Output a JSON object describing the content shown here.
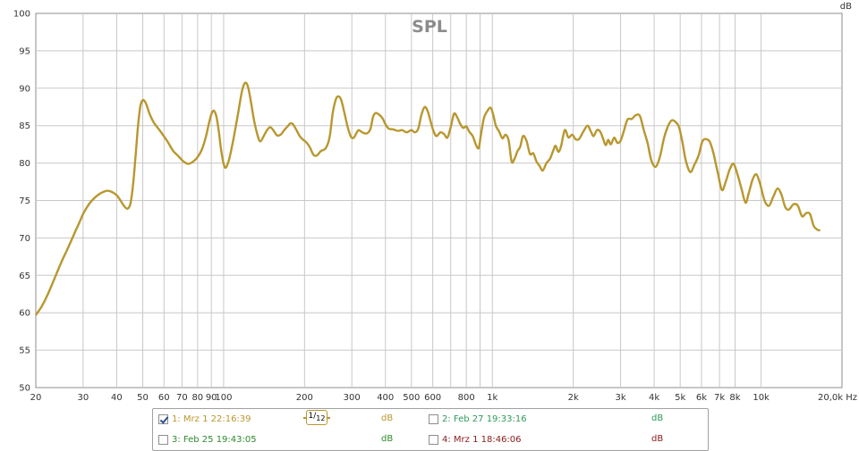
{
  "chart_data": {
    "type": "line",
    "title": "SPL",
    "ylabel": "dB",
    "xlabel": "",
    "x_scale": "log",
    "xlim": [
      20,
      20000
    ],
    "ylim": [
      50,
      100
    ],
    "grid": true,
    "y_ticks": [
      50,
      55,
      60,
      65,
      70,
      75,
      80,
      85,
      90,
      95,
      100
    ],
    "x_ticks": [
      {
        "v": 20,
        "label": "20"
      },
      {
        "v": 30,
        "label": "30"
      },
      {
        "v": 40,
        "label": "40"
      },
      {
        "v": 50,
        "label": "50"
      },
      {
        "v": 60,
        "label": "60"
      },
      {
        "v": 70,
        "label": "70"
      },
      {
        "v": 80,
        "label": "80"
      },
      {
        "v": 90,
        "label": "90"
      },
      {
        "v": 100,
        "label": "100"
      },
      {
        "v": 200,
        "label": "200"
      },
      {
        "v": 300,
        "label": "300"
      },
      {
        "v": 400,
        "label": "400"
      },
      {
        "v": 500,
        "label": "500"
      },
      {
        "v": 600,
        "label": "600"
      },
      {
        "v": 800,
        "label": "800"
      },
      {
        "v": 1000,
        "label": "1k"
      },
      {
        "v": 2000,
        "label": "2k"
      },
      {
        "v": 3000,
        "label": "3k"
      },
      {
        "v": 4000,
        "label": "4k"
      },
      {
        "v": 5000,
        "label": "5k"
      },
      {
        "v": 6000,
        "label": "6k"
      },
      {
        "v": 7000,
        "label": "7k"
      },
      {
        "v": 8000,
        "label": "8k"
      },
      {
        "v": 10000,
        "label": "10k"
      },
      {
        "v": 20000,
        "label": "20,0k Hz"
      }
    ],
    "minor_x_gridlines": [
      700,
      900
    ],
    "series": [
      {
        "color": "#b8972e",
        "points": [
          [
            20,
            59.7
          ],
          [
            21,
            60.8
          ],
          [
            22,
            62.2
          ],
          [
            23,
            63.8
          ],
          [
            24,
            65.4
          ],
          [
            25,
            66.9
          ],
          [
            26,
            68.2
          ],
          [
            27,
            69.5
          ],
          [
            28,
            70.8
          ],
          [
            29,
            72.0
          ],
          [
            30,
            73.2
          ],
          [
            31,
            74.1
          ],
          [
            32,
            74.8
          ],
          [
            33,
            75.3
          ],
          [
            34,
            75.7
          ],
          [
            35,
            76.0
          ],
          [
            36,
            76.2
          ],
          [
            37,
            76.3
          ],
          [
            38,
            76.2
          ],
          [
            39,
            76.0
          ],
          [
            40,
            75.7
          ],
          [
            41,
            75.2
          ],
          [
            42,
            74.6
          ],
          [
            43,
            74.1
          ],
          [
            44,
            73.9
          ],
          [
            45,
            74.6
          ],
          [
            46,
            77.0
          ],
          [
            47,
            80.8
          ],
          [
            48,
            84.9
          ],
          [
            49,
            87.6
          ],
          [
            50,
            88.4
          ],
          [
            51,
            88.2
          ],
          [
            52,
            87.5
          ],
          [
            53,
            86.6
          ],
          [
            55,
            85.4
          ],
          [
            58,
            84.3
          ],
          [
            62,
            82.8
          ],
          [
            65,
            81.6
          ],
          [
            68,
            80.9
          ],
          [
            71,
            80.2
          ],
          [
            74,
            79.9
          ],
          [
            77,
            80.2
          ],
          [
            80,
            80.8
          ],
          [
            83,
            81.8
          ],
          [
            86,
            83.6
          ],
          [
            88,
            85.2
          ],
          [
            90,
            86.5
          ],
          [
            92,
            87.0
          ],
          [
            94,
            86.2
          ],
          [
            96,
            84.2
          ],
          [
            98,
            81.6
          ],
          [
            100,
            79.9
          ],
          [
            102,
            79.4
          ],
          [
            105,
            80.6
          ],
          [
            109,
            83.4
          ],
          [
            113,
            86.5
          ],
          [
            117,
            89.6
          ],
          [
            120,
            90.7
          ],
          [
            123,
            90.3
          ],
          [
            126,
            88.4
          ],
          [
            130,
            85.6
          ],
          [
            134,
            83.6
          ],
          [
            137,
            82.9
          ],
          [
            141,
            83.6
          ],
          [
            145,
            84.4
          ],
          [
            149,
            84.8
          ],
          [
            153,
            84.4
          ],
          [
            158,
            83.7
          ],
          [
            163,
            83.8
          ],
          [
            168,
            84.4
          ],
          [
            173,
            84.9
          ],
          [
            177,
            85.3
          ],
          [
            181,
            85.2
          ],
          [
            186,
            84.5
          ],
          [
            192,
            83.6
          ],
          [
            198,
            83.1
          ],
          [
            204,
            82.7
          ],
          [
            210,
            82.0
          ],
          [
            216,
            81.1
          ],
          [
            222,
            81.0
          ],
          [
            230,
            81.6
          ],
          [
            240,
            82.0
          ],
          [
            248,
            83.5
          ],
          [
            255,
            86.8
          ],
          [
            262,
            88.6
          ],
          [
            268,
            88.9
          ],
          [
            274,
            88.4
          ],
          [
            282,
            86.6
          ],
          [
            290,
            84.7
          ],
          [
            298,
            83.5
          ],
          [
            305,
            83.4
          ],
          [
            312,
            84.0
          ],
          [
            318,
            84.4
          ],
          [
            325,
            84.2
          ],
          [
            333,
            84.0
          ],
          [
            343,
            84.0
          ],
          [
            352,
            84.6
          ],
          [
            360,
            86.2
          ],
          [
            368,
            86.7
          ],
          [
            378,
            86.5
          ],
          [
            390,
            86.0
          ],
          [
            400,
            85.2
          ],
          [
            412,
            84.6
          ],
          [
            428,
            84.5
          ],
          [
            445,
            84.3
          ],
          [
            462,
            84.4
          ],
          [
            480,
            84.1
          ],
          [
            500,
            84.4
          ],
          [
            515,
            84.1
          ],
          [
            530,
            84.6
          ],
          [
            545,
            86.5
          ],
          [
            560,
            87.5
          ],
          [
            575,
            86.9
          ],
          [
            590,
            85.5
          ],
          [
            605,
            84.2
          ],
          [
            620,
            83.6
          ],
          [
            640,
            84.1
          ],
          [
            660,
            83.9
          ],
          [
            680,
            83.4
          ],
          [
            700,
            84.8
          ],
          [
            720,
            86.6
          ],
          [
            740,
            86.1
          ],
          [
            760,
            85.2
          ],
          [
            780,
            84.7
          ],
          [
            800,
            84.9
          ],
          [
            820,
            84.2
          ],
          [
            845,
            83.6
          ],
          [
            870,
            82.4
          ],
          [
            890,
            82.0
          ],
          [
            905,
            83.6
          ],
          [
            930,
            86.0
          ],
          [
            960,
            87.0
          ],
          [
            985,
            87.4
          ],
          [
            1005,
            86.6
          ],
          [
            1030,
            85.0
          ],
          [
            1060,
            84.2
          ],
          [
            1090,
            83.3
          ],
          [
            1120,
            83.8
          ],
          [
            1150,
            83.0
          ],
          [
            1180,
            80.2
          ],
          [
            1210,
            80.6
          ],
          [
            1240,
            81.6
          ],
          [
            1270,
            82.2
          ],
          [
            1300,
            83.6
          ],
          [
            1340,
            83.0
          ],
          [
            1380,
            81.2
          ],
          [
            1420,
            81.3
          ],
          [
            1460,
            80.2
          ],
          [
            1500,
            79.6
          ],
          [
            1540,
            79.0
          ],
          [
            1590,
            80.0
          ],
          [
            1640,
            80.6
          ],
          [
            1690,
            81.8
          ],
          [
            1720,
            82.3
          ],
          [
            1760,
            81.5
          ],
          [
            1800,
            82.2
          ],
          [
            1860,
            84.4
          ],
          [
            1920,
            83.4
          ],
          [
            1980,
            83.8
          ],
          [
            2040,
            83.2
          ],
          [
            2100,
            83.2
          ],
          [
            2180,
            84.2
          ],
          [
            2260,
            85.0
          ],
          [
            2320,
            84.3
          ],
          [
            2380,
            83.6
          ],
          [
            2450,
            84.4
          ],
          [
            2520,
            84.2
          ],
          [
            2580,
            83.3
          ],
          [
            2640,
            82.4
          ],
          [
            2700,
            83.1
          ],
          [
            2760,
            82.5
          ],
          [
            2840,
            83.4
          ],
          [
            2920,
            82.7
          ],
          [
            3000,
            83.0
          ],
          [
            3080,
            84.2
          ],
          [
            3180,
            85.8
          ],
          [
            3300,
            85.9
          ],
          [
            3420,
            86.4
          ],
          [
            3540,
            86.3
          ],
          [
            3660,
            84.4
          ],
          [
            3780,
            82.7
          ],
          [
            3900,
            80.4
          ],
          [
            4050,
            79.5
          ],
          [
            4200,
            80.8
          ],
          [
            4350,
            83.3
          ],
          [
            4500,
            84.9
          ],
          [
            4650,
            85.7
          ],
          [
            4800,
            85.5
          ],
          [
            4950,
            84.8
          ],
          [
            5100,
            82.7
          ],
          [
            5250,
            80.3
          ],
          [
            5450,
            78.8
          ],
          [
            5650,
            79.8
          ],
          [
            5850,
            81.0
          ],
          [
            6050,
            82.9
          ],
          [
            6250,
            83.2
          ],
          [
            6450,
            82.8
          ],
          [
            6650,
            81.3
          ],
          [
            6900,
            78.7
          ],
          [
            7150,
            76.4
          ],
          [
            7400,
            77.6
          ],
          [
            7650,
            79.2
          ],
          [
            7900,
            79.9
          ],
          [
            8150,
            78.6
          ],
          [
            8450,
            76.6
          ],
          [
            8750,
            74.7
          ],
          [
            9000,
            76.0
          ],
          [
            9300,
            77.8
          ],
          [
            9600,
            78.5
          ],
          [
            9900,
            77.3
          ],
          [
            10300,
            75.0
          ],
          [
            10700,
            74.3
          ],
          [
            11100,
            75.5
          ],
          [
            11500,
            76.6
          ],
          [
            11900,
            75.8
          ],
          [
            12300,
            74.1
          ],
          [
            12700,
            73.8
          ],
          [
            13200,
            74.5
          ],
          [
            13700,
            74.3
          ],
          [
            14200,
            72.9
          ],
          [
            14700,
            73.3
          ],
          [
            15200,
            73.2
          ],
          [
            15700,
            71.6
          ],
          [
            16200,
            71.1
          ],
          [
            16600,
            71.0
          ]
        ]
      }
    ]
  },
  "legend": {
    "smoothing": {
      "num": "1",
      "den": "12"
    },
    "items": [
      {
        "label": "1: Mrz 1 22:16:39",
        "unit": "dB",
        "checked": true,
        "color": "#b8972e"
      },
      {
        "label": "2: Feb 27 19:33:16",
        "unit": "dB",
        "checked": false,
        "color": "#2e9a5a"
      },
      {
        "label": "3: Feb 25 19:43:05",
        "unit": "dB",
        "checked": false,
        "color": "#2d8a2d"
      },
      {
        "label": "4: Mrz 1 18:46:06",
        "unit": "dB",
        "checked": false,
        "color": "#8b1a1a"
      }
    ]
  }
}
